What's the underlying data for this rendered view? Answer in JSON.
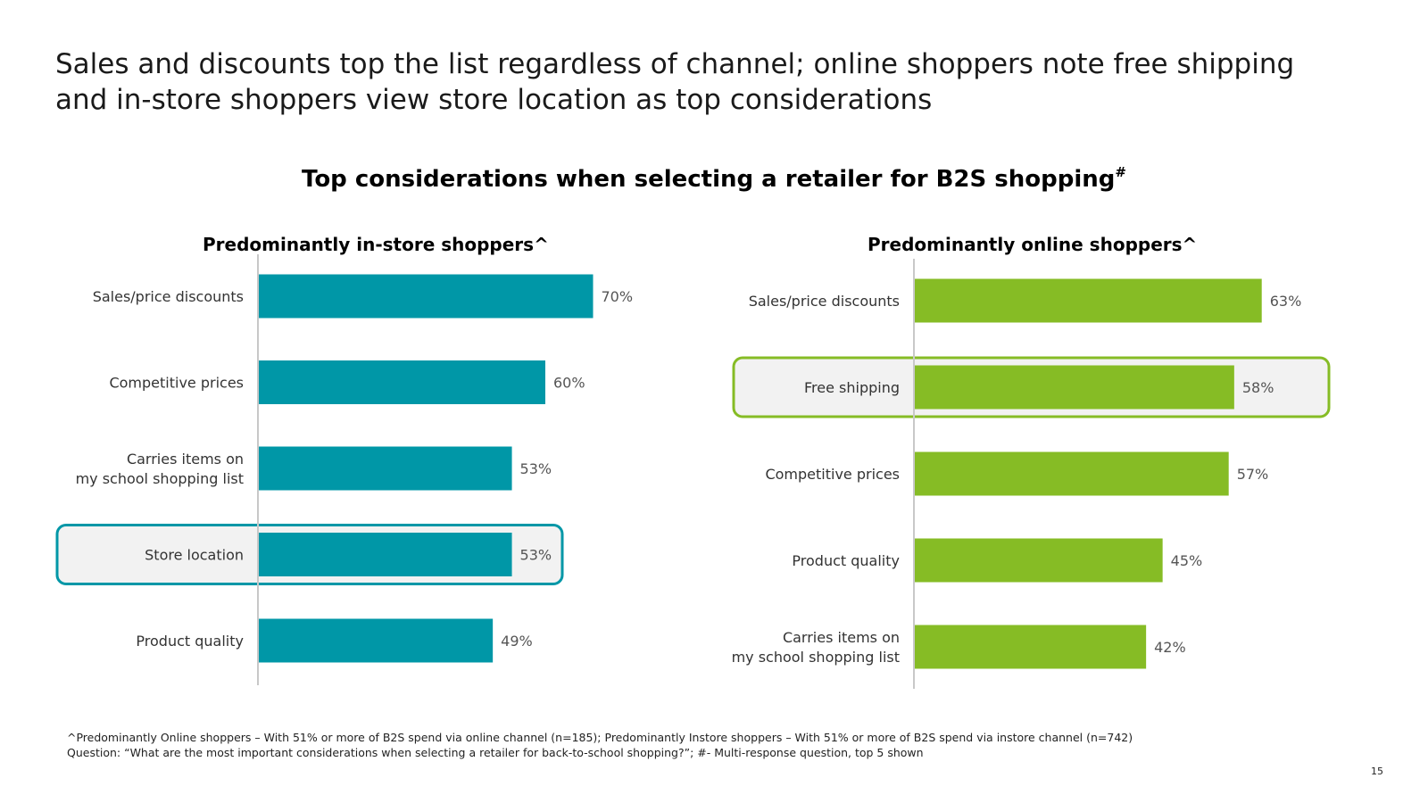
{
  "headline": "Sales and discounts top the list regardless of channel; online shoppers note free shipping and in-store shoppers view store location as top considerations",
  "chart_title": "Top considerations when selecting a retailer for B2S shopping",
  "chart_title_marker": "#",
  "chart_data": [
    {
      "type": "bar",
      "orientation": "horizontal",
      "title": "Predominantly in-store shoppers^",
      "categories": [
        "Sales/price discounts",
        "Competitive prices",
        "Carries items on\nmy school shopping list",
        "Store location",
        "Product quality"
      ],
      "values": [
        70,
        60,
        53,
        53,
        49
      ],
      "value_labels": [
        "70%",
        "60%",
        "53%",
        "53%",
        "49%"
      ],
      "highlight": "Store location",
      "color": "#0097a7",
      "grid": false
    },
    {
      "type": "bar",
      "orientation": "horizontal",
      "title": "Predominantly online shoppers^",
      "categories": [
        "Sales/price discounts",
        "Free shipping",
        "Competitive prices",
        "Product quality",
        "Carries items on\nmy school shopping list"
      ],
      "values": [
        63,
        58,
        57,
        45,
        42
      ],
      "value_labels": [
        "63%",
        "58%",
        "57%",
        "45%",
        "42%"
      ],
      "highlight": "Free shipping",
      "color": "#86bc25",
      "grid": false
    }
  ],
  "footnotes": [
    "^Predominantly Online shoppers – With 51% or more of B2S spend via online channel (n=185); Predominantly Instore shoppers – With 51% or more of B2S spend via instore channel (n=742)",
    "Question: “What are the most important considerations when selecting a retailer for back-to-school shopping?”; #- Multi-response question, top 5 shown"
  ],
  "page_number": "15"
}
